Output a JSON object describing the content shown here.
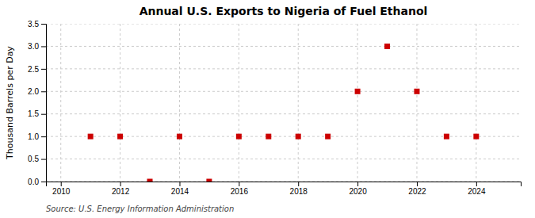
{
  "chart_data": {
    "type": "scatter",
    "title": "Annual U.S. Exports to Nigeria of Fuel Ethanol",
    "ylabel": "Thousand Barrels per Day",
    "annotations": [
      "Source: U.S. Energy Information Administration"
    ],
    "x": [
      2011,
      2012,
      2013,
      2014,
      2015,
      2016,
      2017,
      2018,
      2019,
      2020,
      2021,
      2022,
      2023,
      2024
    ],
    "values": [
      1.0,
      1.0,
      0.0,
      1.0,
      0.0,
      1.0,
      1.0,
      1.0,
      1.0,
      2.0,
      3.0,
      2.0,
      1.0,
      1.0
    ],
    "color": "#cc0000",
    "marker": "square",
    "xlim": [
      2009.5,
      2025.5
    ],
    "xticks": [
      2010,
      2012,
      2014,
      2016,
      2018,
      2020,
      2022,
      2024
    ],
    "ylim": [
      0.0,
      3.5
    ],
    "yticks": [
      {
        "value": 0.0,
        "label": "0.0"
      },
      0.5,
      {
        "value": 1.0,
        "label": "1.0"
      },
      1.5,
      {
        "value": 2.0,
        "label": "2.0"
      },
      2.5,
      {
        "value": 3.0,
        "label": "3.0"
      },
      3.5
    ],
    "grid": true
  }
}
